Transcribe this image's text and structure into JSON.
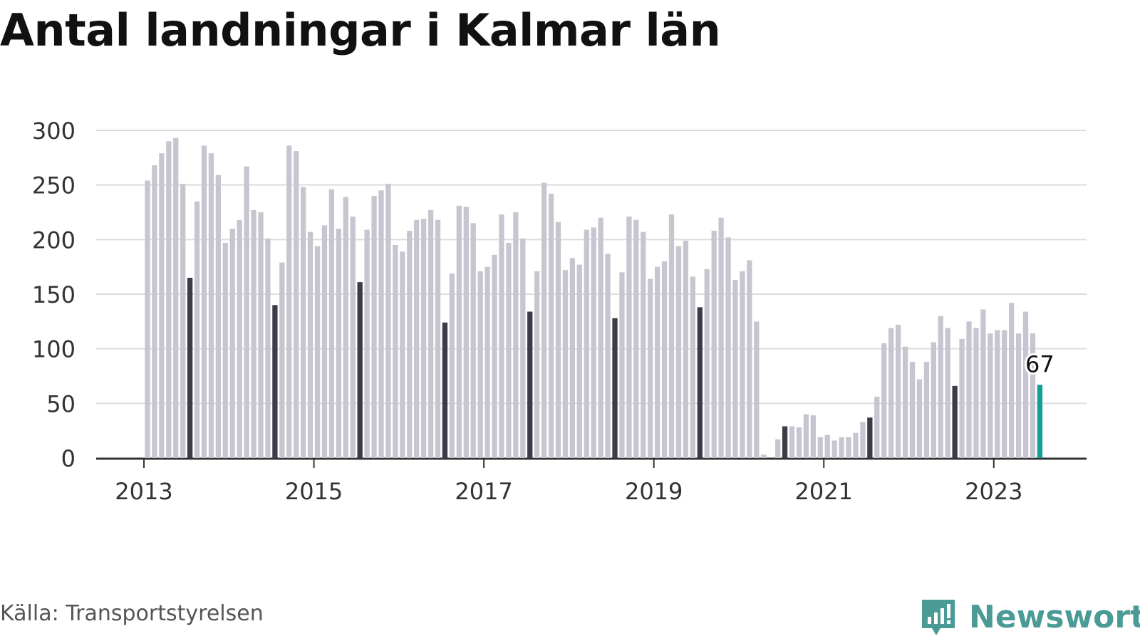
{
  "title": "Antal landningar i Kalmar län",
  "source": "Källa: Transportstyrelsen",
  "brand": {
    "name": "Newsworthy",
    "icon": "newsworthy-logo-icon",
    "color": "#4a9a96"
  },
  "colors": {
    "bar": "#c7c6d0",
    "july": "#3c3b49",
    "latest": "#139e96",
    "grid": "#dddddd",
    "axis": "#333333"
  },
  "chart_data": {
    "type": "bar",
    "title": "Antal landningar i Kalmar län",
    "xlabel": "",
    "ylabel": "",
    "ylim": [
      0,
      300
    ],
    "yticks": [
      "0",
      "50",
      "100",
      "150",
      "200",
      "250",
      "300"
    ],
    "xticks": [
      "2013",
      "2015",
      "2017",
      "2019",
      "2021",
      "2023"
    ],
    "grid": true,
    "start": "2013-01",
    "highlight_month": "July (dark)",
    "latest_label": "67",
    "series": [
      {
        "values": [
          254,
          268,
          279,
          290,
          293,
          251,
          165,
          235,
          286,
          279,
          259,
          197,
          210,
          218,
          267,
          227,
          225,
          201,
          140,
          179,
          286,
          281,
          248,
          207,
          194,
          213,
          246,
          210,
          239,
          221,
          161,
          209,
          240,
          245,
          251,
          195,
          189,
          208,
          218,
          219,
          227,
          218,
          124,
          169,
          231,
          230,
          215,
          171,
          175,
          186,
          223,
          197,
          225,
          201,
          134,
          171,
          252,
          242,
          216,
          172,
          183,
          177,
          209,
          211,
          220,
          187,
          128,
          170,
          221,
          218,
          207,
          164,
          175,
          180,
          223,
          194,
          199,
          166,
          138,
          173,
          208,
          220,
          202,
          163,
          171,
          181,
          125,
          3,
          0,
          17,
          29,
          29,
          28,
          40,
          39,
          19,
          21,
          16,
          19,
          19,
          23,
          33,
          37,
          56,
          105,
          119,
          122,
          102,
          88,
          72,
          88,
          106,
          130,
          119,
          66,
          109,
          125,
          119,
          136,
          114,
          117,
          117,
          142,
          114,
          134,
          114,
          67
        ]
      }
    ]
  }
}
